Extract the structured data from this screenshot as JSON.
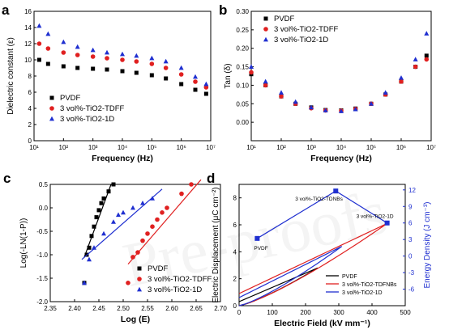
{
  "chart_data": [
    {
      "panel_letter": "a",
      "type": "scatter",
      "xlabel": "Frequency (Hz)",
      "ylabel": "Dielectric constant (ε)",
      "xscale": "log",
      "xlim": [
        10,
        10000000
      ],
      "ylim": [
        0,
        16
      ],
      "xticks": [
        "10¹",
        "10²",
        "10³",
        "10⁴",
        "10⁵",
        "10⁶",
        "10⁷"
      ],
      "yticks": [
        "0",
        "2",
        "4",
        "6",
        "8",
        "10",
        "12",
        "14",
        "16"
      ],
      "legend_position": "bottom-left",
      "series": [
        {
          "name": "PVDF",
          "color": "#000000",
          "marker": "square",
          "x": [
            15,
            30,
            100,
            300,
            1000,
            3000,
            10000,
            30000,
            100000,
            300000,
            1000000,
            3000000,
            7000000
          ],
          "y": [
            10.0,
            9.5,
            9.2,
            9.0,
            8.9,
            8.8,
            8.6,
            8.4,
            8.1,
            7.7,
            7.0,
            6.3,
            5.8
          ]
        },
        {
          "name": "3 vol%-TiO2-TDFF",
          "color": "#e02020",
          "marker": "circle",
          "x": [
            15,
            30,
            100,
            300,
            1000,
            3000,
            10000,
            30000,
            100000,
            300000,
            1000000,
            3000000,
            7000000
          ],
          "y": [
            12.0,
            11.4,
            10.9,
            10.6,
            10.4,
            10.2,
            10.0,
            9.8,
            9.5,
            9.0,
            8.2,
            7.3,
            6.6
          ]
        },
        {
          "name": "3 vol%-TiO2-1D",
          "color": "#1f2fd0",
          "marker": "triangle",
          "x": [
            15,
            30,
            100,
            300,
            1000,
            3000,
            10000,
            30000,
            100000,
            300000,
            1000000,
            3000000,
            7000000
          ],
          "y": [
            14.2,
            13.2,
            12.2,
            11.6,
            11.2,
            10.9,
            10.7,
            10.5,
            10.2,
            9.8,
            9.0,
            7.9,
            7.0
          ]
        }
      ]
    },
    {
      "panel_letter": "b",
      "type": "scatter",
      "xlabel": "Frequency (Hz)",
      "ylabel": "Tan (δ)",
      "xscale": "log",
      "xlim": [
        10,
        10000000
      ],
      "ylim": [
        -0.05,
        0.3
      ],
      "xticks": [
        "10¹",
        "10²",
        "10³",
        "10⁴",
        "10⁵",
        "10⁶",
        "10⁷"
      ],
      "yticks": [
        "0.00",
        "0.05",
        "0.10",
        "0.15",
        "0.20",
        "0.25",
        "0.30"
      ],
      "legend_position": "top-left",
      "series": [
        {
          "name": "PVDF",
          "color": "#000000",
          "marker": "square",
          "x": [
            10,
            30,
            100,
            300,
            1000,
            3000,
            10000,
            30000,
            100000,
            300000,
            1000000,
            3000000,
            7000000
          ],
          "y": [
            0.13,
            0.1,
            0.07,
            0.05,
            0.04,
            0.033,
            0.032,
            0.037,
            0.05,
            0.075,
            0.11,
            0.15,
            0.18
          ]
        },
        {
          "name": "3 vol%-TiO2-TDFF",
          "color": "#e02020",
          "marker": "circle",
          "x": [
            10,
            30,
            100,
            300,
            1000,
            3000,
            10000,
            30000,
            100000,
            300000,
            1000000,
            3000000,
            7000000
          ],
          "y": [
            0.135,
            0.1,
            0.07,
            0.05,
            0.038,
            0.032,
            0.031,
            0.036,
            0.05,
            0.075,
            0.11,
            0.15,
            0.17
          ]
        },
        {
          "name": "3 vol%-TiO2-1D",
          "color": "#1f2fd0",
          "marker": "triangle",
          "x": [
            10,
            30,
            100,
            300,
            1000,
            3000,
            10000,
            30000,
            100000,
            300000,
            1000000,
            3000000,
            7000000
          ],
          "y": [
            0.15,
            0.11,
            0.08,
            0.055,
            0.04,
            0.032,
            0.03,
            0.035,
            0.05,
            0.08,
            0.12,
            0.17,
            0.24
          ]
        }
      ]
    },
    {
      "panel_letter": "c",
      "type": "scatter",
      "xlabel": "Log (E)",
      "ylabel": "Log(-LN(1-P))",
      "xlim": [
        2.35,
        2.7
      ],
      "ylim": [
        -2.0,
        0.5
      ],
      "xticks": [
        "2.35",
        "2.40",
        "2.45",
        "2.50",
        "2.55",
        "2.60",
        "2.65",
        "2.70"
      ],
      "yticks": [
        "-2.0",
        "-1.5",
        "-1.0",
        "-0.5",
        "0.0",
        "0.5"
      ],
      "legend_position": "bottom-right",
      "series": [
        {
          "name": "PVDF",
          "color": "#000000",
          "marker": "square",
          "x": [
            2.42,
            2.425,
            2.43,
            2.435,
            2.44,
            2.445,
            2.45,
            2.455,
            2.46,
            2.47,
            2.48
          ],
          "y": [
            -1.6,
            -1.0,
            -0.85,
            -0.6,
            -0.4,
            -0.2,
            -0.05,
            0.1,
            0.2,
            0.35,
            0.5
          ],
          "fit": {
            "x": [
              2.42,
              2.475
            ],
            "y": [
              -1.05,
              0.5
            ]
          }
        },
        {
          "name": "3 vol%-TiO2-TDFF",
          "color": "#e02020",
          "marker": "circle",
          "x": [
            2.51,
            2.52,
            2.53,
            2.54,
            2.55,
            2.56,
            2.57,
            2.58,
            2.59,
            2.62,
            2.64
          ],
          "y": [
            -1.6,
            -1.05,
            -0.95,
            -0.7,
            -0.55,
            -0.4,
            -0.25,
            -0.1,
            0.0,
            0.3,
            0.5
          ],
          "fit": {
            "x": [
              2.51,
              2.66
            ],
            "y": [
              -1.2,
              0.6
            ]
          }
        },
        {
          "name": "3 vol%-TiO2-1D",
          "color": "#1f2fd0",
          "marker": "triangle",
          "x": [
            2.42,
            2.43,
            2.44,
            2.46,
            2.48,
            2.49,
            2.5,
            2.52,
            2.54,
            2.56
          ],
          "y": [
            -1.6,
            -1.1,
            -0.85,
            -0.55,
            -0.3,
            -0.15,
            -0.1,
            0.0,
            0.1,
            0.2
          ],
          "fit": {
            "x": [
              2.415,
              2.58
            ],
            "y": [
              -1.1,
              0.4
            ]
          }
        }
      ]
    },
    {
      "panel_letter": "d",
      "type": "line",
      "xlabel": "Electric Field (kV mm⁻¹)",
      "ylabel": "Electric Displacement (μC cm⁻²)",
      "y2label": "Energy Density (J cm⁻³)",
      "xlim": [
        0,
        550
      ],
      "ylim": [
        0,
        9
      ],
      "y2lim": [
        -9,
        13
      ],
      "xticks": [
        "0",
        "100",
        "200",
        "300",
        "400",
        "500"
      ],
      "yticks": [
        "0",
        "2",
        "4",
        "6",
        "8"
      ],
      "y2ticks": [
        "-6",
        "-3",
        "0",
        "3",
        "6",
        "9",
        "12"
      ],
      "legend_position": "bottom-right",
      "loops": [
        {
          "name": "PVDF",
          "color": "#000000",
          "emax": 260,
          "dmax": 2.8,
          "d0": 0.3
        },
        {
          "name": "3 vol%-TiO2-TDFNBs",
          "color": "#e02020",
          "emax": 490,
          "dmax": 6.1,
          "d0": 0.9
        },
        {
          "name": "3 vol%-TiO2-1D",
          "color": "#1f2fd0",
          "emax": 340,
          "dmax": 4.4,
          "d0": 0.6
        }
      ],
      "energy_density": {
        "color": "#1f2fd0",
        "points": [
          {
            "x": 60,
            "y": 3.2,
            "label": "PVDF"
          },
          {
            "x": 320,
            "y": 11.8,
            "label": "3 vol%-TiO2-TDNBs"
          },
          {
            "x": 490,
            "y": 6.0,
            "label": "3 vol%-TiO2-1D"
          }
        ]
      }
    }
  ]
}
